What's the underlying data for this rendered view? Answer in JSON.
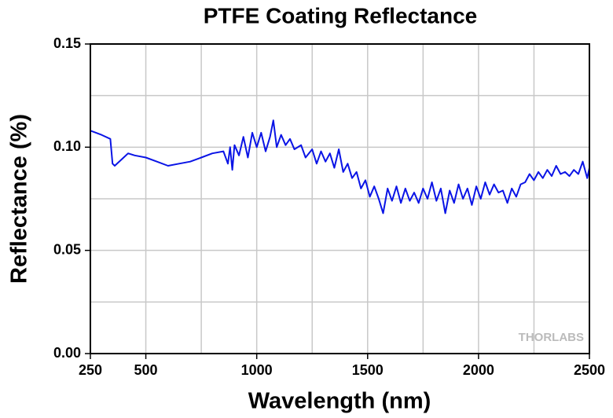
{
  "chart_data": {
    "type": "line",
    "title": "PTFE Coating Reflectance",
    "xlabel": "Wavelength (nm)",
    "ylabel": "Reflectance (%)",
    "watermark": "THORLABS",
    "xlim": [
      250,
      2500
    ],
    "ylim": [
      0,
      0.15
    ],
    "xticks": [
      250,
      500,
      1000,
      1500,
      2000,
      2500
    ],
    "yticks": [
      {
        "value": 0,
        "label": "0.00"
      },
      {
        "value": 0.05,
        "label": "0.05"
      },
      {
        "value": 0.1,
        "label": "0.10"
      },
      {
        "value": 0.15,
        "label": "0.15"
      }
    ],
    "xgrid": [
      500,
      750,
      1000,
      1250,
      1500,
      1750,
      2000,
      2250
    ],
    "ygrid": [
      0.025,
      0.05,
      0.075,
      0.1,
      0.125
    ],
    "grid": true,
    "series": [
      {
        "color": "#0a14e6",
        "x": [
          250,
          275,
          300,
          340,
          350,
          360,
          400,
          420,
          450,
          500,
          550,
          600,
          650,
          700,
          750,
          800,
          850,
          870,
          880,
          890,
          900,
          920,
          940,
          960,
          980,
          1000,
          1020,
          1040,
          1060,
          1075,
          1090,
          1110,
          1130,
          1150,
          1170,
          1200,
          1220,
          1250,
          1270,
          1290,
          1310,
          1330,
          1350,
          1370,
          1390,
          1410,
          1430,
          1450,
          1470,
          1490,
          1510,
          1530,
          1550,
          1570,
          1590,
          1610,
          1630,
          1650,
          1670,
          1690,
          1710,
          1730,
          1750,
          1770,
          1790,
          1810,
          1830,
          1850,
          1870,
          1890,
          1910,
          1930,
          1950,
          1970,
          1990,
          2010,
          2030,
          2050,
          2070,
          2090,
          2110,
          2130,
          2150,
          2170,
          2190,
          2210,
          2230,
          2250,
          2270,
          2290,
          2310,
          2330,
          2350,
          2370,
          2390,
          2410,
          2430,
          2450,
          2470,
          2490,
          2500
        ],
        "values": [
          0.108,
          0.107,
          0.106,
          0.104,
          0.092,
          0.091,
          0.095,
          0.097,
          0.096,
          0.095,
          0.093,
          0.091,
          0.092,
          0.093,
          0.095,
          0.097,
          0.098,
          0.092,
          0.1,
          0.089,
          0.101,
          0.096,
          0.105,
          0.095,
          0.107,
          0.1,
          0.107,
          0.098,
          0.105,
          0.113,
          0.1,
          0.106,
          0.101,
          0.104,
          0.099,
          0.101,
          0.095,
          0.099,
          0.092,
          0.098,
          0.093,
          0.097,
          0.09,
          0.099,
          0.088,
          0.092,
          0.085,
          0.088,
          0.08,
          0.084,
          0.076,
          0.081,
          0.075,
          0.068,
          0.08,
          0.074,
          0.081,
          0.073,
          0.08,
          0.074,
          0.078,
          0.073,
          0.08,
          0.075,
          0.083,
          0.074,
          0.08,
          0.068,
          0.079,
          0.073,
          0.082,
          0.075,
          0.08,
          0.072,
          0.081,
          0.075,
          0.083,
          0.077,
          0.082,
          0.078,
          0.079,
          0.073,
          0.08,
          0.076,
          0.082,
          0.083,
          0.087,
          0.084,
          0.088,
          0.085,
          0.089,
          0.086,
          0.091,
          0.087,
          0.088,
          0.086,
          0.089,
          0.087,
          0.093,
          0.085,
          0.09
        ]
      }
    ]
  }
}
